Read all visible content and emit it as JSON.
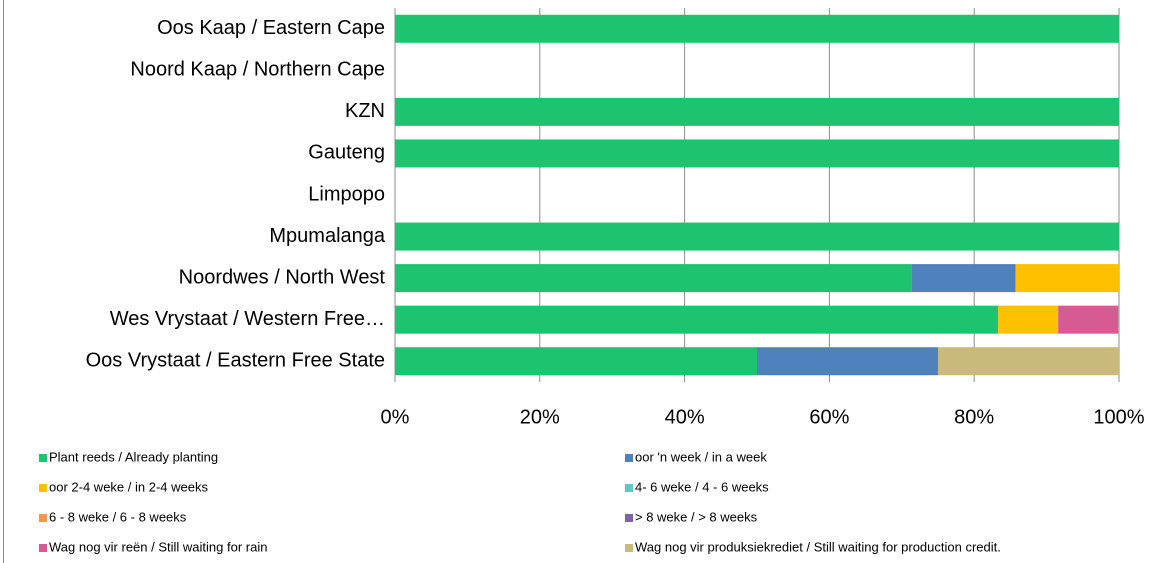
{
  "chart_data": {
    "type": "stacked_bar_horizontal",
    "categories": [
      "Oos Kaap / Eastern Cape",
      "Noord Kaap / Northern Cape",
      "KZN",
      "Gauteng",
      "Limpopo",
      "Mpumalanga",
      "Noordwes / North West",
      "Wes Vrystaat / Western Free…",
      "Oos Vrystaat / Eastern Free State"
    ],
    "series": [
      {
        "name": "Plant reeds / Already planting",
        "color": "#1dc36e",
        "values": [
          100,
          0,
          100,
          100,
          0,
          100,
          71.4,
          83.3,
          50
        ]
      },
      {
        "name": "oor 'n week / in a week",
        "color": "#4f81bd",
        "values": [
          0,
          0,
          0,
          0,
          0,
          0,
          14.3,
          0,
          25
        ]
      },
      {
        "name": "oor 2-4 weke / in 2-4 weeks",
        "color": "#ffc000",
        "values": [
          0,
          0,
          0,
          0,
          0,
          0,
          14.3,
          8.3,
          0
        ]
      },
      {
        "name": "4- 6 weke / 4 - 6 weeks",
        "color": "#5fc8c8",
        "values": [
          0,
          0,
          0,
          0,
          0,
          0,
          0,
          0,
          0
        ]
      },
      {
        "name": "6 - 8 weke / 6 - 8 weeks",
        "color": "#f79646",
        "values": [
          0,
          0,
          0,
          0,
          0,
          0,
          0,
          0,
          0
        ]
      },
      {
        "name": "> 8 weke / > 8 weeks",
        "color": "#8064a2",
        "values": [
          0,
          0,
          0,
          0,
          0,
          0,
          0,
          0,
          0
        ]
      },
      {
        "name": "Wag nog vir reën / Still waiting for rain",
        "color": "#d55b92",
        "values": [
          0,
          0,
          0,
          0,
          0,
          0,
          0,
          8.3,
          0
        ]
      },
      {
        "name": "Wag nog vir produksiekrediet /  Still waiting for production credit.",
        "color": "#c9b97a",
        "values": [
          0,
          0,
          0,
          0,
          0,
          0,
          0,
          0,
          25
        ]
      }
    ],
    "xlim": [
      0,
      100
    ],
    "xticks": [
      {
        "value": 0,
        "label": "0%"
      },
      {
        "value": 20,
        "label": "20%"
      },
      {
        "value": 40,
        "label": "40%"
      },
      {
        "value": 60,
        "label": "60%"
      },
      {
        "value": 80,
        "label": "80%"
      },
      {
        "value": 100,
        "label": "100%"
      }
    ],
    "grid": true
  }
}
